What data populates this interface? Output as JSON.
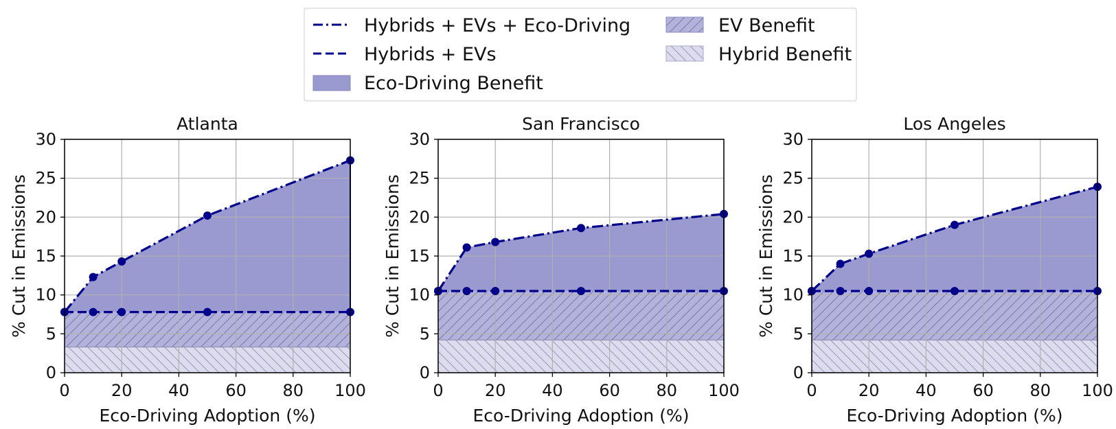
{
  "colors": {
    "line": "#00008b",
    "eco_fill": "#9a9ad0",
    "ev_fill": "#b2b2dc",
    "hybrid_fill": "#dcdcee",
    "hatch": "#7a7aa0",
    "grid": "#b0b0b0"
  },
  "legend": {
    "items": [
      {
        "key": "hev_eco",
        "label": "Hybrids + EVs + Eco-Driving"
      },
      {
        "key": "hev",
        "label": "Hybrids + EVs"
      },
      {
        "key": "eco_benefit",
        "label": "Eco-Driving Benefit"
      },
      {
        "key": "ev_benefit",
        "label": "EV Benefit"
      },
      {
        "key": "hybrid_benefit",
        "label": "Hybrid Benefit"
      }
    ]
  },
  "chart_data": [
    {
      "type": "area",
      "title": "Atlanta",
      "xlabel": "Eco-Driving Adoption (%)",
      "ylabel": "% Cut in Emissions",
      "xlim": [
        0,
        100
      ],
      "ylim": [
        0,
        30
      ],
      "xticks": [
        0,
        20,
        40,
        60,
        80,
        100
      ],
      "yticks": [
        0,
        5,
        10,
        15,
        20,
        25,
        30
      ],
      "grid": true,
      "x": [
        0,
        10,
        20,
        50,
        100
      ],
      "series": [
        {
          "name": "Hybrids + EVs + Eco-Driving",
          "values": [
            7.8,
            12.3,
            14.3,
            20.2,
            27.3
          ]
        },
        {
          "name": "Hybrids + EVs",
          "values": [
            7.8,
            7.8,
            7.8,
            7.8,
            7.8
          ]
        }
      ],
      "hybrid_benefit": 3.3
    },
    {
      "type": "area",
      "title": "San Francisco",
      "xlabel": "Eco-Driving Adoption (%)",
      "ylabel": "% Cut in Emissions",
      "xlim": [
        0,
        100
      ],
      "ylim": [
        0,
        30
      ],
      "xticks": [
        0,
        20,
        40,
        60,
        80,
        100
      ],
      "yticks": [
        0,
        5,
        10,
        15,
        20,
        25,
        30
      ],
      "grid": true,
      "x": [
        0,
        10,
        20,
        50,
        100
      ],
      "series": [
        {
          "name": "Hybrids + EVs + Eco-Driving",
          "values": [
            10.5,
            16.1,
            16.8,
            18.6,
            20.4
          ]
        },
        {
          "name": "Hybrids + EVs",
          "values": [
            10.5,
            10.5,
            10.5,
            10.5,
            10.5
          ]
        }
      ],
      "hybrid_benefit": 4.2
    },
    {
      "type": "area",
      "title": "Los Angeles",
      "xlabel": "Eco-Driving Adoption (%)",
      "ylabel": "% Cut in Emissions",
      "xlim": [
        0,
        100
      ],
      "ylim": [
        0,
        30
      ],
      "xticks": [
        0,
        20,
        40,
        60,
        80,
        100
      ],
      "yticks": [
        0,
        5,
        10,
        15,
        20,
        25,
        30
      ],
      "grid": true,
      "x": [
        0,
        10,
        20,
        50,
        100
      ],
      "series": [
        {
          "name": "Hybrids + EVs + Eco-Driving",
          "values": [
            10.5,
            14.0,
            15.3,
            19.0,
            23.9
          ]
        },
        {
          "name": "Hybrids + EVs",
          "values": [
            10.5,
            10.5,
            10.5,
            10.5,
            10.5
          ]
        }
      ],
      "hybrid_benefit": 4.2
    }
  ]
}
